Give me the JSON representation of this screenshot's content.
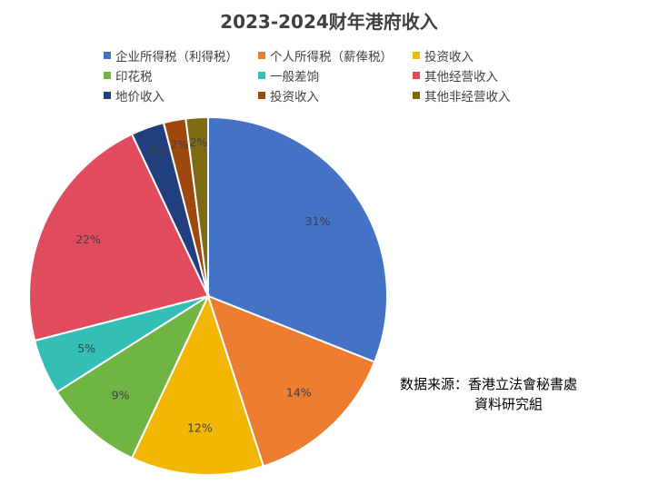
{
  "chart_data": {
    "type": "pie",
    "title": "2023-2024财年港府收入",
    "categories": [
      "企业所得税（利得税）",
      "个人所得税（薪俸税）",
      "投资收入",
      "印花税",
      "一般差饷",
      "其他经营收入",
      "地价收入",
      "投资收入",
      "其他非经营收入"
    ],
    "values": [
      31,
      14,
      12,
      9,
      5,
      22,
      3,
      2,
      2
    ],
    "labels": [
      "31%",
      "14%",
      "12%",
      "9%",
      "5%",
      "22%",
      "3%",
      "2%",
      "2%"
    ],
    "colors": [
      "#4472C4",
      "#ED7D31",
      "#F2B705",
      "#70B543",
      "#33BFB5",
      "#E14B5E",
      "#213F7D",
      "#9E480E",
      "#7E6A12"
    ],
    "legend_position": "top"
  },
  "source": {
    "line1": "数据来源：香港立法會秘書處",
    "line2": "資料研究組"
  }
}
